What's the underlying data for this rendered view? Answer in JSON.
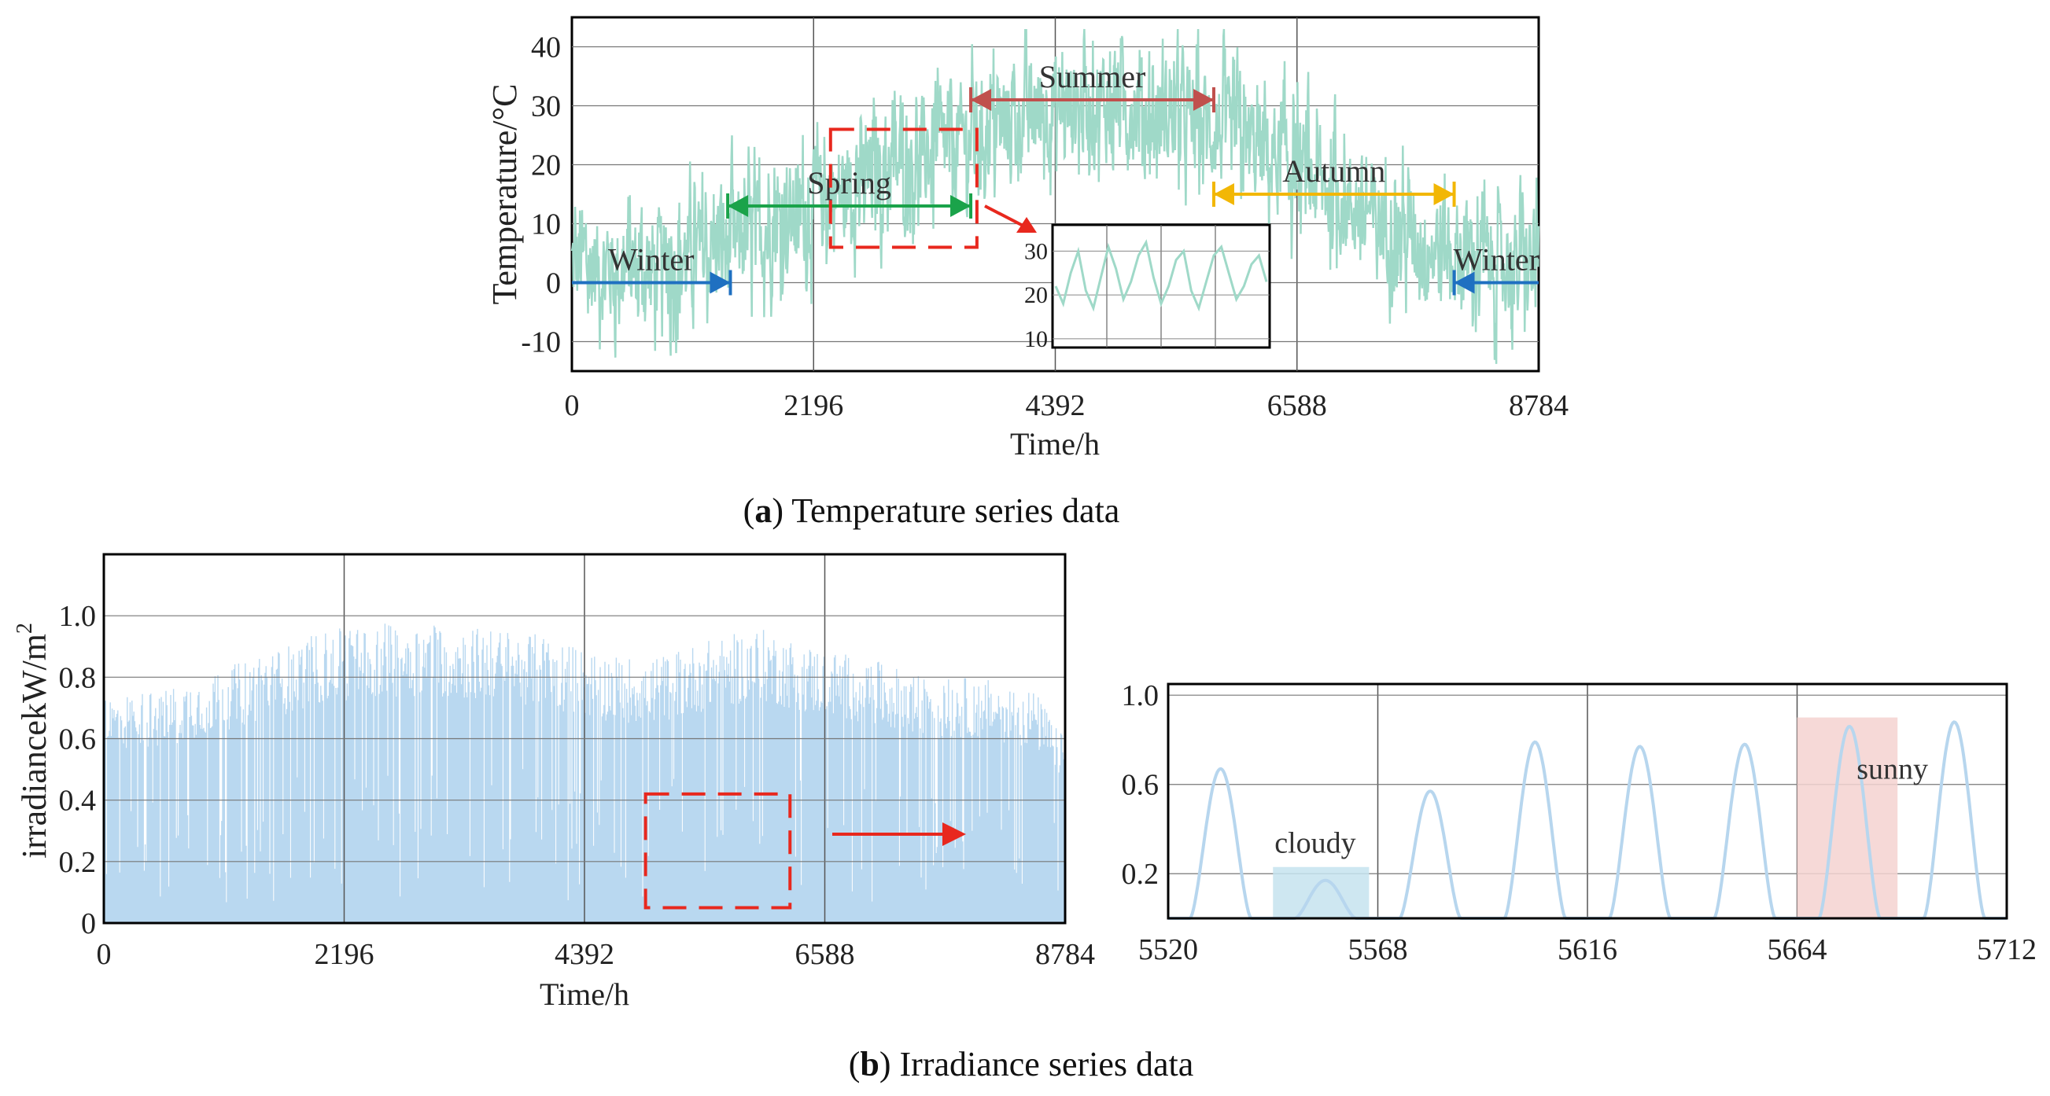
{
  "chart_data": [
    {
      "id": "temperature",
      "type": "line",
      "caption_label": "a",
      "caption_text": "Temperature series data",
      "xlabel": "Time/h",
      "ylabel": "Temperature/°C",
      "xlim": [
        0,
        8784
      ],
      "ylim": [
        -15,
        45
      ],
      "xticks": [
        0,
        2196,
        4392,
        6588,
        8784
      ],
      "xtick_labels": [
        "0",
        "2196",
        "4392",
        "6588",
        "8784"
      ],
      "yticks": [
        -10,
        0,
        10,
        20,
        30,
        40
      ],
      "ytick_labels": [
        "-10",
        "0",
        "10",
        "20",
        "30",
        "40"
      ],
      "grid": true,
      "line_color": "#9fd9c8",
      "trend_x": [
        0,
        500,
        1000,
        1500,
        2000,
        2500,
        3000,
        3500,
        4000,
        4500,
        5000,
        5500,
        6000,
        6500,
        7000,
        7500,
        8000,
        8500,
        8784
      ],
      "trend_y": [
        3,
        2,
        4,
        7,
        11,
        16,
        20,
        24,
        28,
        30,
        30,
        28,
        25,
        20,
        14,
        9,
        5,
        3,
        2
      ],
      "season_arrows": [
        {
          "label": "Winter",
          "x_from": 0,
          "x_to": 1440,
          "y": 0,
          "direction": "right",
          "color": "#1f70c1"
        },
        {
          "label": "Spring",
          "x_from": 1416,
          "x_to": 3624,
          "y": 13,
          "direction": "both",
          "color": "#1aa34a"
        },
        {
          "label": "Summer",
          "x_from": 3624,
          "x_to": 5832,
          "y": 31,
          "direction": "both",
          "color": "#c0504d"
        },
        {
          "label": "Autumn",
          "x_from": 5832,
          "x_to": 8016,
          "y": 15,
          "direction": "both",
          "color": "#f2b705"
        },
        {
          "label": "Winter",
          "x_from": 8016,
          "x_to": 8784,
          "y": 0,
          "direction": "left",
          "color": "#1f70c1"
        }
      ],
      "zoom_box": {
        "x_from": 2350,
        "x_to": 3680,
        "y_from": 6,
        "y_to": 26
      },
      "inset": {
        "yticks": [
          10,
          20,
          30
        ],
        "ytick_labels": [
          "10",
          "20",
          "30"
        ],
        "ylim": [
          8,
          36
        ],
        "values": [
          22,
          18,
          25,
          30,
          21,
          17,
          24,
          31,
          26,
          19,
          23,
          29,
          32,
          24,
          18,
          22,
          28,
          30,
          21,
          17,
          23,
          29,
          31,
          25,
          19,
          22,
          27,
          29,
          23
        ]
      }
    },
    {
      "id": "irradiance",
      "type": "bar",
      "caption_label": "b",
      "caption_text": "Irradiance series data",
      "xlabel": "Time/h",
      "ylabel": "irradiancekW/m",
      "ylabel_sup": "2",
      "xlim": [
        0,
        8784
      ],
      "ylim": [
        0,
        1.2
      ],
      "xticks": [
        0,
        2196,
        4392,
        6588,
        8784
      ],
      "xtick_labels": [
        "0",
        "2196",
        "4392",
        "6588",
        "8784"
      ],
      "yticks": [
        0,
        0.2,
        0.4,
        0.6,
        0.8,
        1.0
      ],
      "ytick_labels": [
        "0",
        "0.2",
        "0.4",
        "0.6",
        "0.8",
        "1.0"
      ],
      "grid": true,
      "fill_color": "#b9d8f0",
      "envelope_x": [
        0,
        500,
        1000,
        1500,
        2000,
        2500,
        3000,
        3500,
        4000,
        4500,
        5000,
        5500,
        6000,
        6500,
        7000,
        7500,
        8000,
        8500,
        8784
      ],
      "envelope_y": [
        0.74,
        0.76,
        0.82,
        0.88,
        0.95,
        0.98,
        0.98,
        0.96,
        0.94,
        0.88,
        0.86,
        0.92,
        0.96,
        0.9,
        0.86,
        0.8,
        0.8,
        0.76,
        0.6
      ],
      "zoom_box": {
        "x_from": 4950,
        "x_to": 6270,
        "y_from": 0.05,
        "y_to": 0.42
      }
    },
    {
      "id": "irradiance-zoom",
      "type": "line",
      "xlim": [
        5520,
        5712
      ],
      "ylim": [
        0,
        1.05
      ],
      "xticks": [
        5520,
        5568,
        5616,
        5664,
        5712
      ],
      "xtick_labels": [
        "5520",
        "5568",
        "5616",
        "5664",
        "5712"
      ],
      "yticks": [
        0.2,
        0.6,
        1.0
      ],
      "ytick_labels": [
        "0.2",
        "0.6",
        "1.0"
      ],
      "grid": true,
      "line_color": "#b7d6ee",
      "day_peaks": [
        {
          "center": 5532,
          "peak": 0.67
        },
        {
          "center": 5556,
          "peak": 0.17
        },
        {
          "center": 5580,
          "peak": 0.57
        },
        {
          "center": 5604,
          "peak": 0.79
        },
        {
          "center": 5628,
          "peak": 0.77
        },
        {
          "center": 5652,
          "peak": 0.78
        },
        {
          "center": 5676,
          "peak": 0.86
        },
        {
          "center": 5700,
          "peak": 0.88
        }
      ],
      "annotations": [
        {
          "label": "cloudy",
          "x_from": 5544,
          "x_to": 5566,
          "y_to": 0.23,
          "color": "#c6e3ee"
        },
        {
          "label": "sunny",
          "x_from": 5664,
          "x_to": 5687,
          "y_to": 0.9,
          "color": "#f4d2d0"
        }
      ]
    }
  ]
}
